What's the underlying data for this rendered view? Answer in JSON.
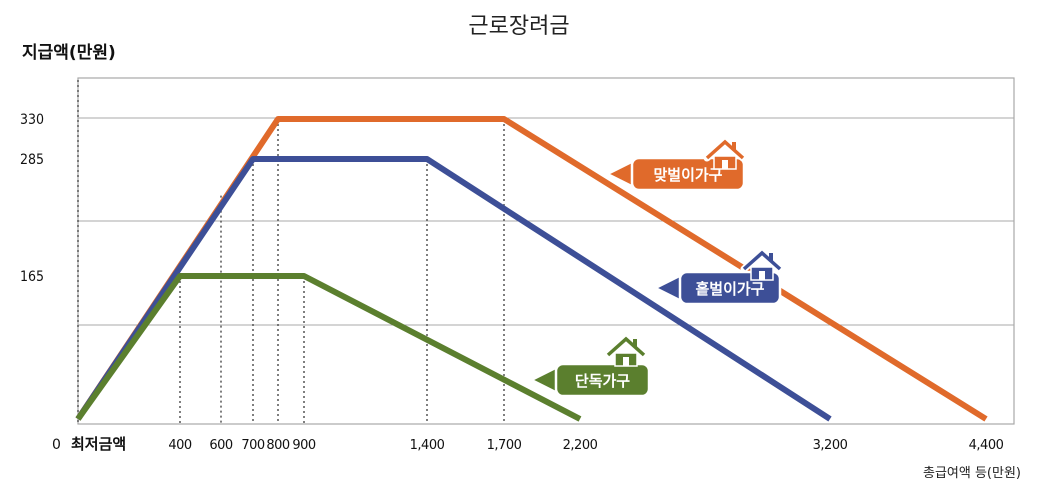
{
  "chart_data": {
    "type": "line",
    "title": "근로장려금",
    "ylabel": "지급액(만원)",
    "xlabel": "총급여액 등(만원)",
    "x_origin_label": "0",
    "x_first_label": "최저금액",
    "ylim": [
      0,
      330
    ],
    "xlim": [
      0,
      4400
    ],
    "y_ticks": [
      "165",
      "285",
      "330"
    ],
    "x_ticks": [
      "400",
      "600",
      "700",
      "800",
      "900",
      "1,400",
      "1,700",
      "2,200",
      "3,200",
      "4,400"
    ],
    "grid": "horizontal",
    "series": [
      {
        "name": "맞벌이가구",
        "color": "#e06a2b",
        "x": [
          0,
          800,
          1700,
          4400
        ],
        "y": [
          0,
          330,
          330,
          0
        ]
      },
      {
        "name": "홑벌이가구",
        "color": "#3d4f97",
        "x": [
          0,
          700,
          1400,
          3200
        ],
        "y": [
          0,
          285,
          285,
          0
        ]
      },
      {
        "name": "단독가구",
        "color": "#5b7f2e",
        "x": [
          0,
          400,
          900,
          2200
        ],
        "y": [
          0,
          165,
          165,
          0
        ]
      }
    ],
    "icons": [
      "house-icon"
    ]
  }
}
